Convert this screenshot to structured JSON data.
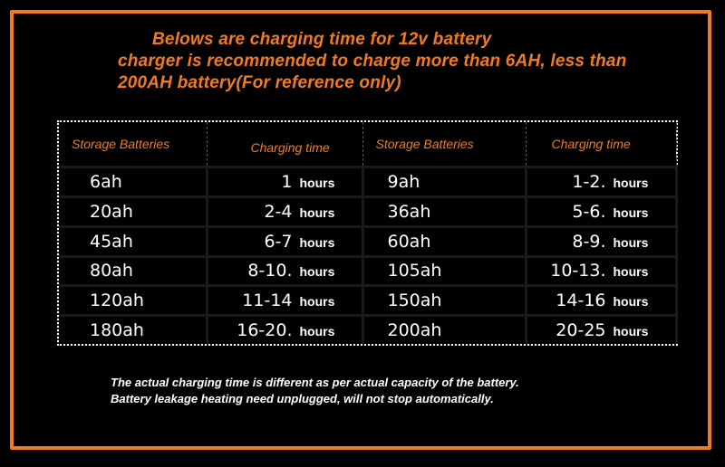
{
  "heading": {
    "line1": "Belows are charging time for 12v battery",
    "line2": "charger is recommended to charge more than 6AH, less than",
    "line3": "200AH battery(For reference only)"
  },
  "table": {
    "headers": [
      "Storage Batteries",
      "Charging time",
      "Storage Batteries",
      "Charging time"
    ],
    "unit": "hours",
    "rows": [
      {
        "cap_a": "6ah",
        "time_a": "1",
        "cap_b": "9ah",
        "time_b": "1-2."
      },
      {
        "cap_a": "20ah",
        "time_a": "2-4",
        "cap_b": "36ah",
        "time_b": "5-6."
      },
      {
        "cap_a": "45ah",
        "time_a": "6-7",
        "cap_b": "60ah",
        "time_b": "8-9."
      },
      {
        "cap_a": "80ah",
        "time_a": "8-10.",
        "cap_b": "105ah",
        "time_b": "10-13."
      },
      {
        "cap_a": "120ah",
        "time_a": "11-14",
        "cap_b": "150ah",
        "time_b": "14-16"
      },
      {
        "cap_a": "180ah",
        "time_a": "16-20.",
        "cap_b": "200ah",
        "time_b": "20-25"
      }
    ]
  },
  "notes": {
    "line1": "The actual charging time is different as per actual capacity of the battery.",
    "line2": "Battery leakage heating need unplugged, will not stop automatically."
  },
  "colors": {
    "accent": "#f47a20",
    "background": "#000000",
    "text": "#ffffff"
  }
}
